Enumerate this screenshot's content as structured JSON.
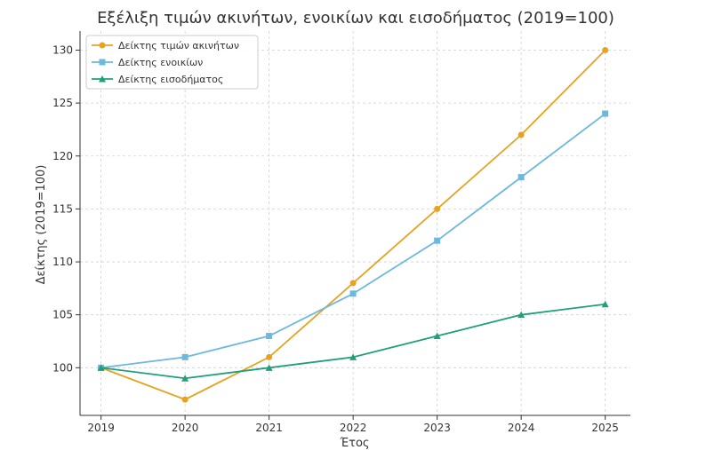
{
  "chart_data": {
    "type": "line",
    "title": "Εξέλιξη τιμών ακινήτων, ενοικίων και εισοδήματος (2019=100)",
    "xlabel": "Έτος",
    "ylabel": "Δείκτης (2019=100)",
    "x": [
      2019,
      2020,
      2021,
      2022,
      2023,
      2024,
      2025
    ],
    "x_ticks": [
      "2019",
      "2020",
      "2021",
      "2022",
      "2023",
      "2024",
      "2025"
    ],
    "y_ticks": [
      "100",
      "105",
      "110",
      "115",
      "120",
      "125",
      "130"
    ],
    "xlim": [
      2018.75,
      2025.3
    ],
    "ylim": [
      95.5,
      131.8
    ],
    "grid": true,
    "legend_position": "top-left",
    "series": [
      {
        "name": "Δείκτης τιμών ακινήτων",
        "values": [
          100,
          97,
          101,
          108,
          115,
          122,
          130
        ],
        "color": "#E6A321",
        "marker": "circle"
      },
      {
        "name": "Δείκτης ενοικίων",
        "values": [
          100,
          101,
          103,
          107,
          112,
          118,
          124
        ],
        "color": "#6BB8E0",
        "marker": "square"
      },
      {
        "name": "Δείκτης εισοδήματος",
        "values": [
          100,
          99,
          100,
          101,
          103,
          105,
          106
        ],
        "color": "#1FA07A",
        "marker": "triangle"
      }
    ]
  }
}
